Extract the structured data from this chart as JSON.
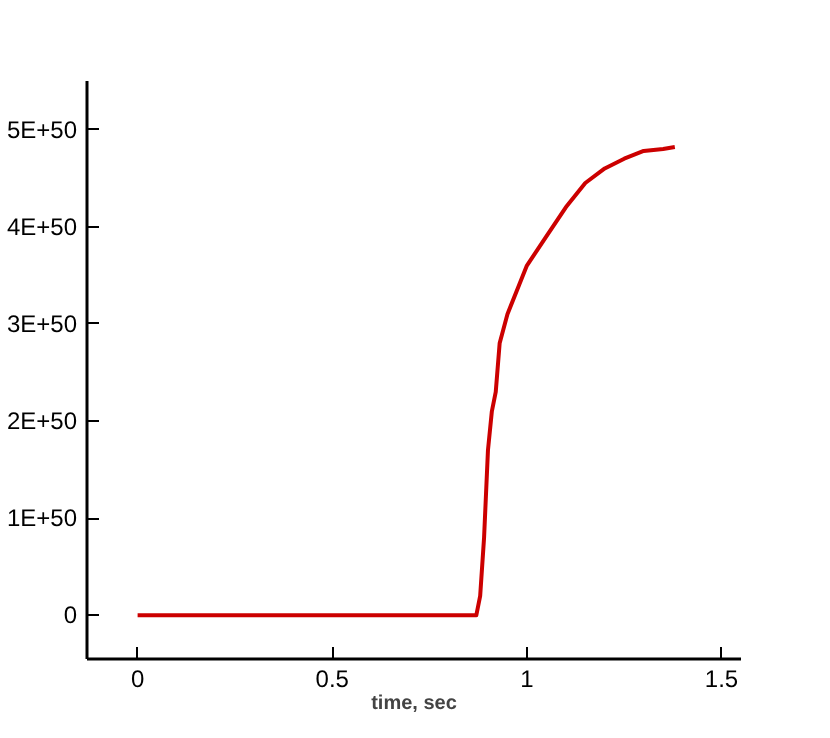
{
  "chart_data": {
    "type": "line",
    "xlabel": "time, sec",
    "x": [
      0,
      0.1,
      0.2,
      0.3,
      0.4,
      0.5,
      0.6,
      0.7,
      0.8,
      0.87,
      0.88,
      0.89,
      0.9,
      0.91,
      0.92,
      0.93,
      0.95,
      0.98,
      1.0,
      1.05,
      1.1,
      1.15,
      1.2,
      1.25,
      1.3,
      1.35,
      1.38
    ],
    "series": [
      {
        "color": "#cc0000",
        "values": [
          0,
          0,
          0,
          0,
          0,
          0,
          0,
          0,
          0,
          0,
          2e+49,
          8e+49,
          1.7e+50,
          2.1e+50,
          2.3e+50,
          2.8e+50,
          3.1e+50,
          3.4e+50,
          3.6e+50,
          3.9e+50,
          4.2e+50,
          4.45e+50,
          4.6e+50,
          4.7e+50,
          4.78e+50,
          4.8e+50,
          4.82e+50
        ]
      }
    ],
    "xlim": [
      -0.13,
      1.55
    ],
    "ylim": [
      -4.5e+49,
      5.5e+50
    ],
    "xticks": [
      0,
      0.5,
      1,
      1.5
    ],
    "yticks": [
      {
        "value": 0,
        "label": "0"
      },
      {
        "value": 1e+50,
        "label": "1E+50"
      },
      {
        "value": 2e+50,
        "label": "2E+50"
      },
      {
        "value": 3e+50,
        "label": "3E+50"
      },
      {
        "value": 4e+50,
        "label": "4E+50"
      },
      {
        "value": 5e+50,
        "label": "5E+50"
      }
    ],
    "grid": false,
    "line_style": "solid"
  }
}
